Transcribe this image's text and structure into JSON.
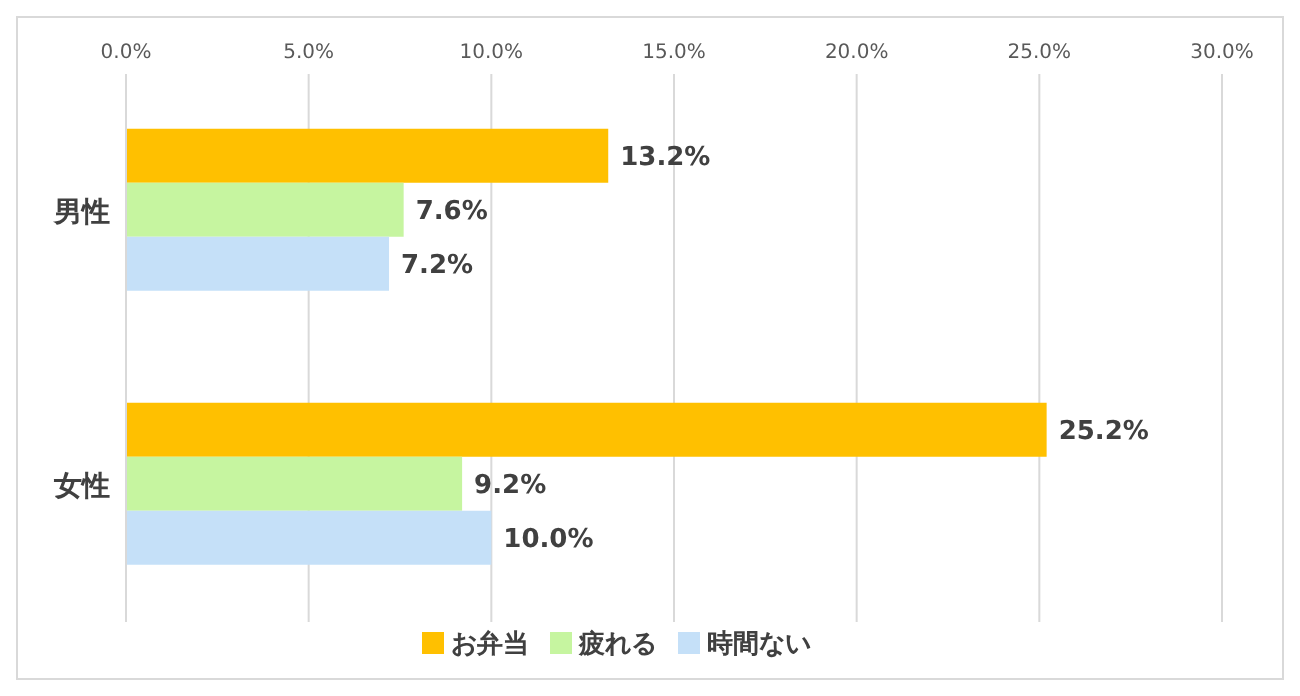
{
  "chart_data": {
    "type": "bar",
    "orientation": "horizontal",
    "categories": [
      "男性",
      "女性"
    ],
    "series": [
      {
        "name": "お弁当",
        "color": "#ffc000",
        "values": [
          13.2,
          25.2
        ],
        "value_labels": [
          "13.2%",
          "25.2%"
        ]
      },
      {
        "name": "疲れる",
        "color": "#c6f5a0",
        "values": [
          7.6,
          9.2
        ],
        "value_labels": [
          "7.6%",
          "9.2%"
        ]
      },
      {
        "name": "時間ない",
        "color": "#c5e0f8",
        "values": [
          7.2,
          10.0
        ],
        "value_labels": [
          "7.2%",
          "10.0%"
        ]
      }
    ],
    "xlim": [
      0,
      30
    ],
    "xticks": [
      {
        "value": 0,
        "label": "0.0%"
      },
      {
        "value": 5,
        "label": "5.0%"
      },
      {
        "value": 10,
        "label": "10.0%"
      },
      {
        "value": 15,
        "label": "15.0%"
      },
      {
        "value": 20,
        "label": "20.0%"
      },
      {
        "value": 25,
        "label": "25.0%"
      },
      {
        "value": 30,
        "label": "30.0%"
      }
    ],
    "grid": "x",
    "legend": "bottom"
  }
}
